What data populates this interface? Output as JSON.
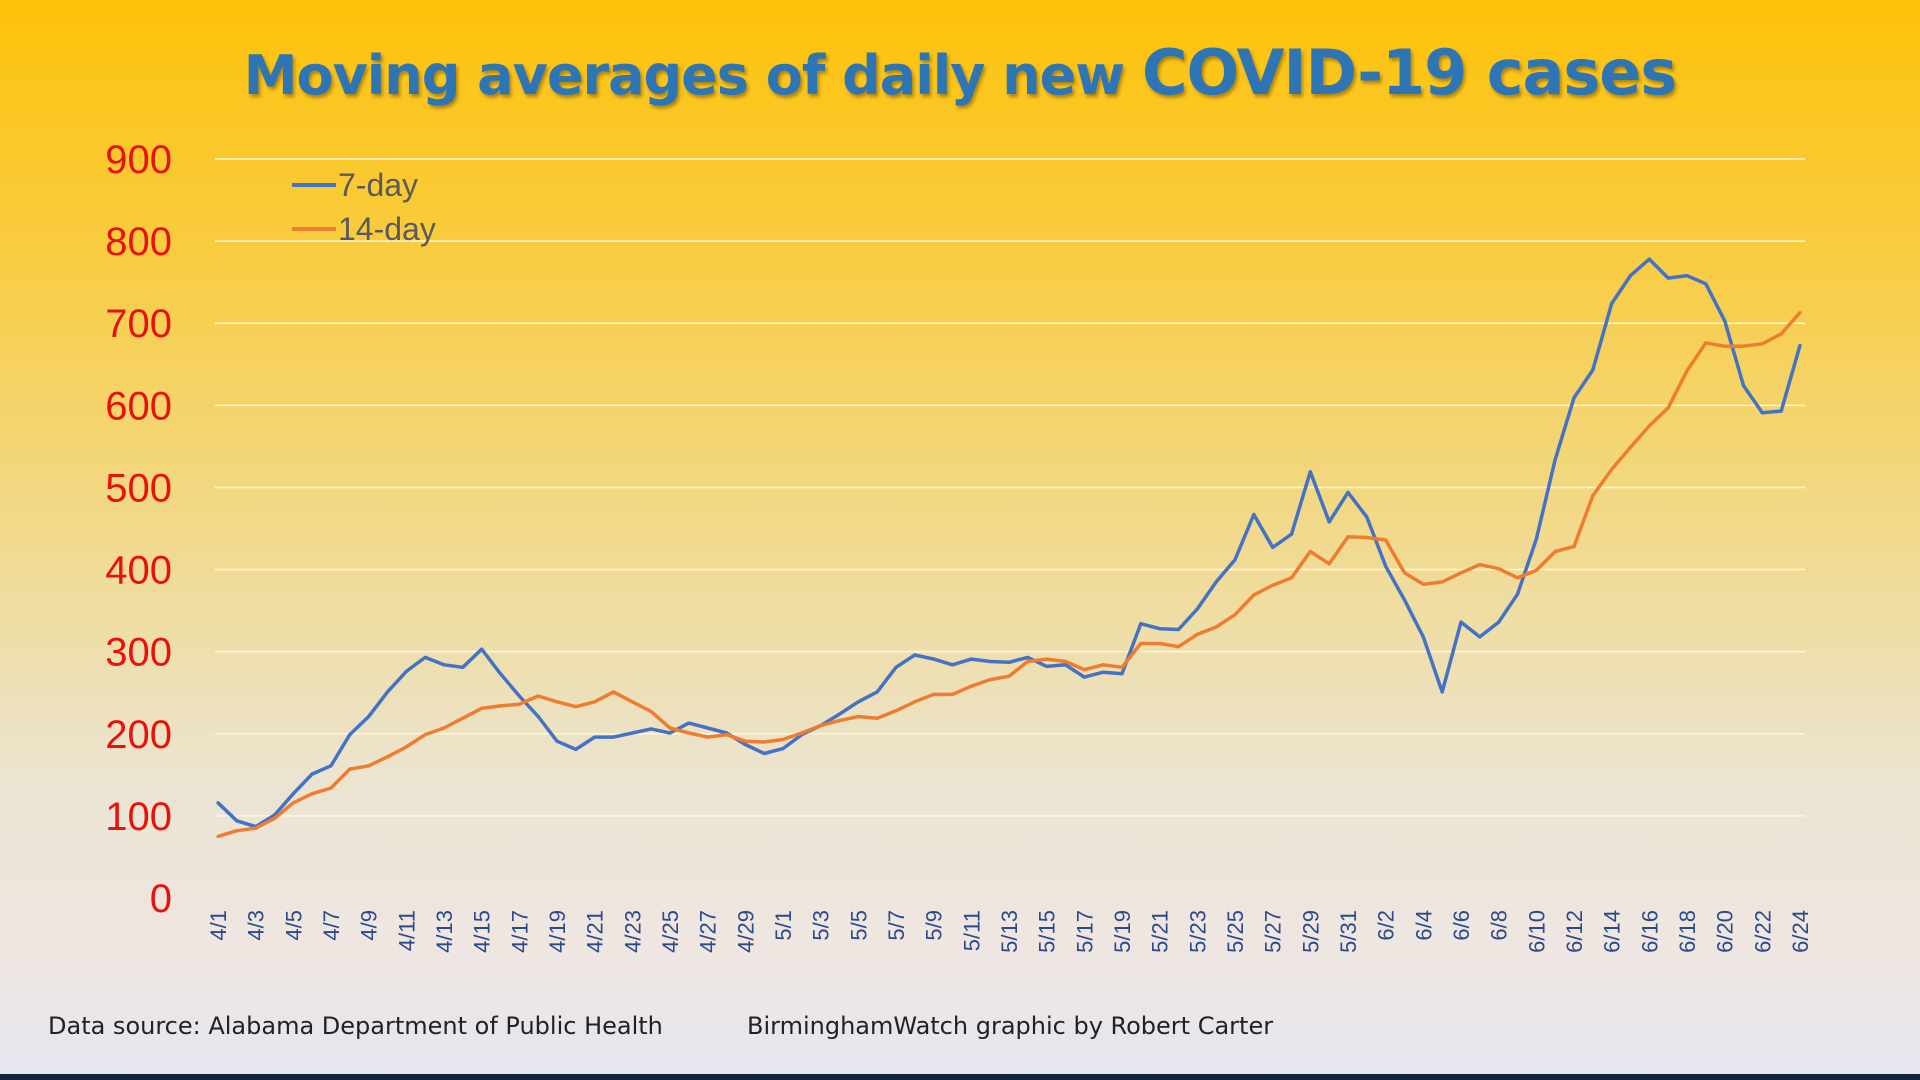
{
  "chart_data": {
    "type": "line",
    "title": "Moving averages of daily new COVID-19 cases",
    "title_parts": [
      "Moving averages of daily new ",
      "COVID-19 cases"
    ],
    "xlabel": "",
    "ylabel": "",
    "ylim": [
      0,
      900
    ],
    "yticks": [
      "0",
      "100",
      "200",
      "300",
      "400",
      "500",
      "600",
      "700",
      "800",
      "900"
    ],
    "grid": true,
    "legend_position": "top-left",
    "x": [
      "4/1",
      "4/2",
      "4/3",
      "4/4",
      "4/5",
      "4/6",
      "4/7",
      "4/8",
      "4/9",
      "4/10",
      "4/11",
      "4/12",
      "4/13",
      "4/14",
      "4/15",
      "4/16",
      "4/17",
      "4/18",
      "4/19",
      "4/20",
      "4/21",
      "4/22",
      "4/23",
      "4/24",
      "4/25",
      "4/26",
      "4/27",
      "4/28",
      "4/29",
      "4/30",
      "5/1",
      "5/2",
      "5/3",
      "5/4",
      "5/5",
      "5/6",
      "5/7",
      "5/8",
      "5/9",
      "5/10",
      "5/11",
      "5/12",
      "5/13",
      "5/14",
      "5/15",
      "5/16",
      "5/17",
      "5/18",
      "5/19",
      "5/20",
      "5/21",
      "5/22",
      "5/23",
      "5/24",
      "5/25",
      "5/26",
      "5/27",
      "5/28",
      "5/29",
      "5/30",
      "5/31",
      "6/1",
      "6/2",
      "6/3",
      "6/4",
      "6/5",
      "6/6",
      "6/7",
      "6/8",
      "6/9",
      "6/10",
      "6/11",
      "6/12",
      "6/13",
      "6/14",
      "6/15",
      "6/16",
      "6/17",
      "6/18",
      "6/19",
      "6/20",
      "6/21",
      "6/22",
      "6/23",
      "6/24"
    ],
    "series": [
      {
        "name": "7-day",
        "color": "#4472c4",
        "values": [
          116,
          94,
          87,
          101,
          127,
          151,
          161,
          199,
          221,
          251,
          276,
          293,
          284,
          281,
          303,
          273,
          246,
          221,
          191,
          181,
          196,
          196,
          201,
          206,
          201,
          213,
          207,
          201,
          187,
          176,
          182,
          199,
          210,
          224,
          239,
          251,
          281,
          296,
          291,
          284,
          291,
          288,
          287,
          293,
          282,
          284,
          269,
          275,
          273,
          334,
          328,
          327,
          352,
          385,
          412,
          467,
          427,
          443,
          519,
          458,
          494,
          464,
          404,
          363,
          318,
          251,
          336,
          318,
          336,
          370,
          437,
          534,
          609,
          643,
          724,
          758,
          778,
          755,
          758,
          748,
          703,
          624,
          591,
          593,
          673
        ]
      },
      {
        "name": "14-day",
        "color": "#ed7d31",
        "values": [
          75,
          82,
          85,
          97,
          116,
          127,
          134,
          157,
          161,
          172,
          184,
          199,
          207,
          219,
          231,
          234,
          236,
          246,
          239,
          233,
          239,
          251,
          239,
          227,
          207,
          201,
          196,
          199,
          191,
          190,
          193,
          201,
          210,
          216,
          221,
          219,
          228,
          239,
          248,
          248,
          258,
          266,
          270,
          288,
          291,
          288,
          278,
          284,
          281,
          310,
          310,
          306,
          321,
          330,
          345,
          369,
          381,
          390,
          422,
          407,
          440,
          439,
          436,
          396,
          382,
          385,
          396,
          406,
          401,
          390,
          399,
          422,
          428,
          490,
          522,
          549,
          575,
          597,
          642,
          676,
          672,
          672,
          675,
          687,
          713
        ]
      }
    ]
  },
  "footer": {
    "source": "Data source: Alabama Department of Public Health",
    "credit": "BirminghamWatch graphic by Robert Carter"
  }
}
